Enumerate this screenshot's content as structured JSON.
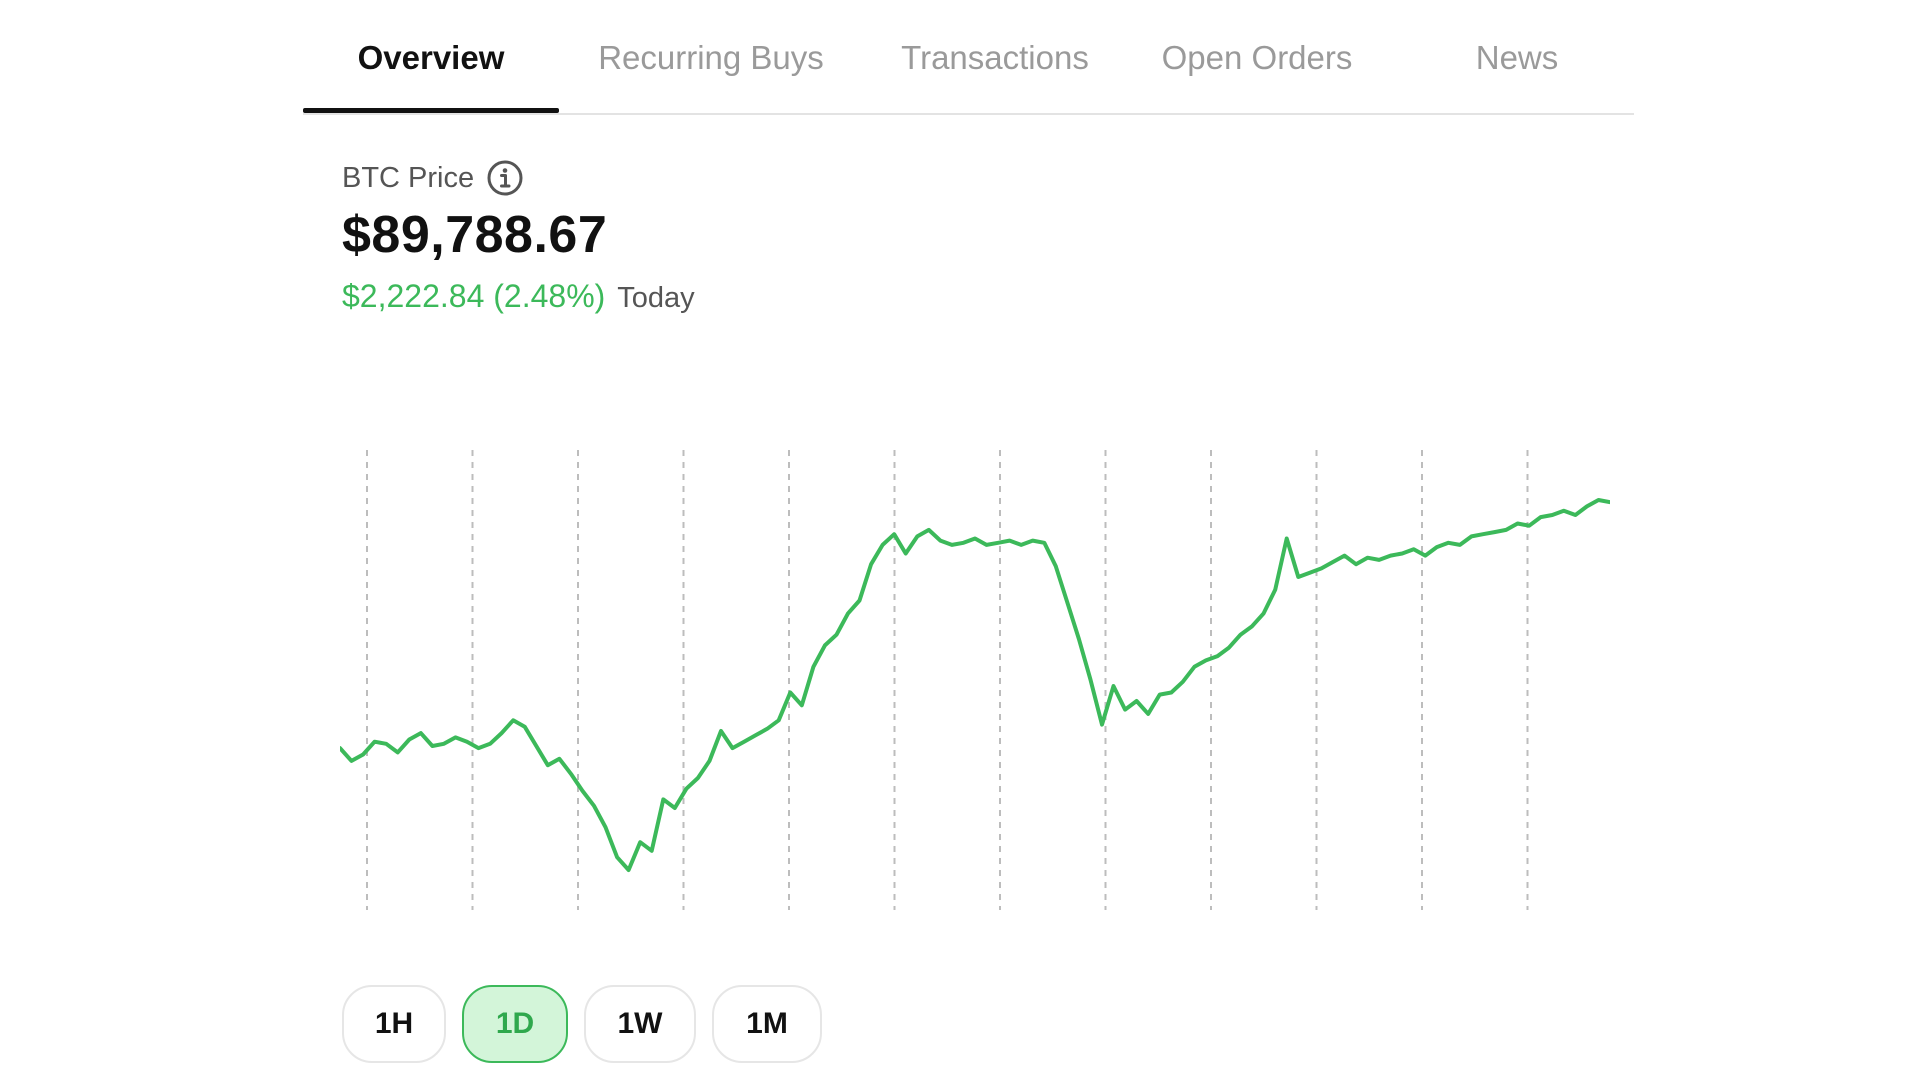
{
  "tabs": [
    {
      "label": "Overview",
      "active": true
    },
    {
      "label": "Recurring Buys",
      "active": false
    },
    {
      "label": "Transactions",
      "active": false
    },
    {
      "label": "Open Orders",
      "active": false
    },
    {
      "label": "News",
      "active": false
    }
  ],
  "price": {
    "label": "BTC Price",
    "info_icon": "info-icon",
    "value": "$89,788.67",
    "change": "$2,222.84 (2.48%)",
    "period": "Today"
  },
  "colors": {
    "accent_green": "#3cb95a",
    "active_range_bg": "#d3f5d9",
    "text_primary": "#111111",
    "text_muted": "#9a9a9a"
  },
  "ranges": [
    {
      "label": "1H",
      "active": false
    },
    {
      "label": "1D",
      "active": true
    },
    {
      "label": "1W",
      "active": false
    },
    {
      "label": "1M",
      "active": false
    }
  ],
  "chart_data": {
    "type": "line",
    "grid": "vertical dashed",
    "series": [
      {
        "color": "#3cb95a",
        "values": [
          87700,
          87640,
          87670,
          87730,
          87720,
          87680,
          87740,
          87770,
          87710,
          87720,
          87750,
          87730,
          87700,
          87720,
          87770,
          87830,
          87800,
          87710,
          87620,
          87650,
          87580,
          87500,
          87430,
          87330,
          87190,
          87130,
          87260,
          87220,
          87460,
          87420,
          87510,
          87560,
          87640,
          87780,
          87700,
          87730,
          87760,
          87790,
          87830,
          87960,
          87900,
          88080,
          88180,
          88230,
          88330,
          88390,
          88560,
          88650,
          88700,
          88610,
          88690,
          88720,
          88670,
          88650,
          88660,
          88680,
          88650,
          88660,
          88670,
          88650,
          88670,
          88660,
          88550,
          88380,
          88210,
          88020,
          87810,
          87990,
          87880,
          87920,
          87860,
          87950,
          87960,
          88010,
          88080,
          88110,
          88130,
          88170,
          88230,
          88270,
          88330,
          88440,
          88680,
          88500,
          88520,
          88540,
          88570,
          88600,
          88560,
          88590,
          88580,
          88600,
          88610,
          88630,
          88600,
          88640,
          88660,
          88650,
          88690,
          88700,
          88710,
          88720,
          88750,
          88740,
          88780,
          88790,
          88810,
          88790,
          88830,
          88860,
          88850
        ]
      }
    ],
    "x_gridlines": 12
  }
}
